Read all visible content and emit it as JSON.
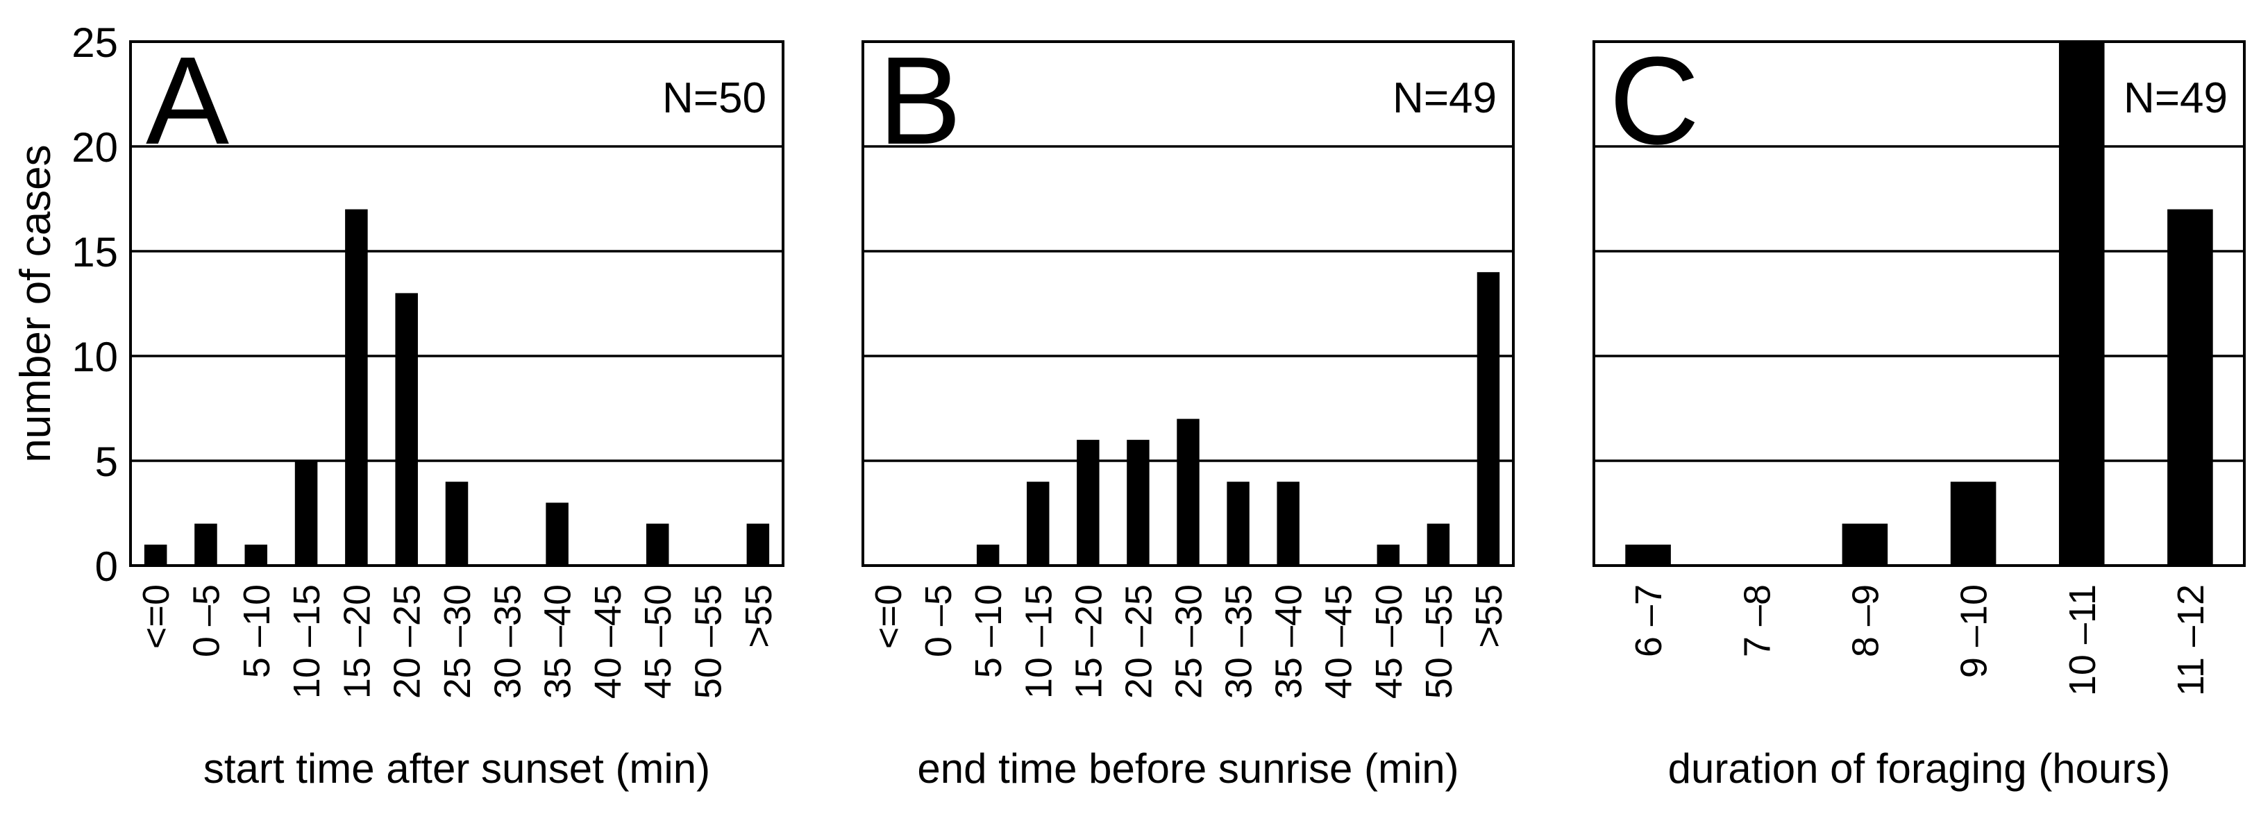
{
  "figure": {
    "ylabel": "number of cases",
    "y_ticks": [
      "0",
      "5",
      "10",
      "15",
      "20",
      "25"
    ]
  },
  "chart_data": [
    {
      "type": "bar",
      "panel_letter": "A",
      "n_label": "N=50",
      "xlabel": "start time after sunset (min)",
      "ylabel": "number of cases",
      "ylim": [
        0,
        25
      ],
      "grid": true,
      "categories": [
        "<=0",
        "0 –5",
        "5 –10",
        "10 –15",
        "15 –20",
        "20 –25",
        "25 –30",
        "30 –35",
        "35 –40",
        "40 –45",
        "45 –50",
        "50 –55",
        ">55"
      ],
      "values": [
        1,
        2,
        1,
        5,
        17,
        13,
        4,
        0,
        3,
        0,
        2,
        0,
        2
      ],
      "color": "#000000"
    },
    {
      "type": "bar",
      "panel_letter": "B",
      "n_label": "N=49",
      "xlabel": "end time before sunrise (min)",
      "ylabel": "number of cases",
      "ylim": [
        0,
        25
      ],
      "grid": true,
      "categories": [
        "<=0",
        "0 –5",
        "5 –10",
        "10 –15",
        "15 –20",
        "20 –25",
        "25 –30",
        "30 –35",
        "35 –40",
        "40 –45",
        "45 –50",
        "50 –55",
        ">55"
      ],
      "values": [
        0,
        0,
        1,
        4,
        6,
        6,
        7,
        4,
        4,
        0,
        1,
        2,
        14
      ],
      "color": "#000000"
    },
    {
      "type": "bar",
      "panel_letter": "C",
      "n_label": "N=49",
      "xlabel": "duration of foraging (hours)",
      "ylabel": "number of cases",
      "ylim": [
        0,
        25
      ],
      "grid": true,
      "categories": [
        "6 –7",
        "7 –8",
        "8 –9",
        "9 –10",
        "10 –11",
        "11 –12"
      ],
      "values": [
        1,
        0,
        2,
        4,
        25,
        17
      ],
      "color": "#000000"
    }
  ]
}
